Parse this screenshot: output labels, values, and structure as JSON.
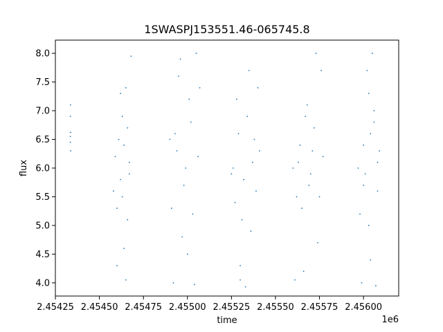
{
  "chart_data": {
    "type": "scatter",
    "title": "1SWASPJ153551.46-065745.8",
    "xlabel": "time",
    "ylabel": "flux",
    "x_offset_label": "1e6",
    "xlim": [
      2.45425,
      2.4562
    ],
    "ylim": [
      3.77,
      8.23
    ],
    "x_ticks": [
      {
        "value": 2.45425,
        "label": "2.45425"
      },
      {
        "value": 2.4545,
        "label": "2.45450"
      },
      {
        "value": 2.45475,
        "label": "2.45475"
      },
      {
        "value": 2.455,
        "label": "2.45500"
      },
      {
        "value": 2.45525,
        "label": "2.45525"
      },
      {
        "value": 2.4555,
        "label": "2.45550"
      },
      {
        "value": 2.45575,
        "label": "2.45575"
      },
      {
        "value": 2.456,
        "label": "2.45600"
      }
    ],
    "y_ticks": [
      {
        "value": 4.0,
        "label": "4.0"
      },
      {
        "value": 4.5,
        "label": "4.5"
      },
      {
        "value": 5.0,
        "label": "5.0"
      },
      {
        "value": 5.5,
        "label": "5.5"
      },
      {
        "value": 6.0,
        "label": "6.0"
      },
      {
        "value": 6.5,
        "label": "6.5"
      },
      {
        "value": 7.0,
        "label": "7.0"
      },
      {
        "value": 7.5,
        "label": "7.5"
      },
      {
        "value": 8.0,
        "label": "8.0"
      }
    ],
    "grid": false,
    "marker_color": "#1f77b4",
    "series": [
      {
        "points": [
          [
            2.454335,
            6.45
          ],
          [
            2.454336,
            6.62
          ],
          [
            2.454335,
            6.9
          ],
          [
            2.454337,
            6.3
          ],
          [
            2.454336,
            7.1
          ],
          [
            2.454335,
            6.55
          ],
          [
            2.45458,
            5.6
          ],
          [
            2.45459,
            6.2
          ],
          [
            2.4546,
            5.3
          ],
          [
            2.45461,
            6.5
          ],
          [
            2.45462,
            5.8
          ],
          [
            2.45463,
            6.9
          ],
          [
            2.45464,
            4.6
          ],
          [
            2.45465,
            7.4
          ],
          [
            2.45466,
            5.1
          ],
          [
            2.45467,
            6.1
          ],
          [
            2.45468,
            7.95
          ],
          [
            2.4546,
            4.3
          ],
          [
            2.45465,
            4.05
          ],
          [
            2.45462,
            7.3
          ],
          [
            2.45466,
            6.7
          ],
          [
            2.45463,
            5.5
          ],
          [
            2.45467,
            5.9
          ],
          [
            2.45464,
            6.4
          ],
          [
            2.45491,
            5.3
          ],
          [
            2.45493,
            6.6
          ],
          [
            2.45495,
            7.6
          ],
          [
            2.45497,
            4.8
          ],
          [
            2.45499,
            6.0
          ],
          [
            2.45501,
            7.2
          ],
          [
            2.45503,
            5.2
          ],
          [
            2.45505,
            8.0
          ],
          [
            2.45492,
            4.0
          ],
          [
            2.45496,
            7.9
          ],
          [
            2.45504,
            3.97
          ],
          [
            2.455,
            4.5
          ],
          [
            2.45494,
            6.3
          ],
          [
            2.45498,
            5.7
          ],
          [
            2.45502,
            6.8
          ],
          [
            2.45506,
            6.2
          ],
          [
            2.4549,
            6.5
          ],
          [
            2.45507,
            7.4
          ],
          [
            2.45526,
            6.0
          ],
          [
            2.45528,
            7.2
          ],
          [
            2.4553,
            4.3
          ],
          [
            2.45532,
            5.8
          ],
          [
            2.45534,
            6.9
          ],
          [
            2.45536,
            4.9
          ],
          [
            2.45538,
            6.5
          ],
          [
            2.4554,
            7.4
          ],
          [
            2.45527,
            5.4
          ],
          [
            2.45533,
            3.93
          ],
          [
            2.45535,
            7.7
          ],
          [
            2.45529,
            6.6
          ],
          [
            2.45531,
            5.1
          ],
          [
            2.45537,
            6.1
          ],
          [
            2.45539,
            5.6
          ],
          [
            2.45541,
            6.3
          ],
          [
            2.45525,
            5.9
          ],
          [
            2.4553,
            4.05
          ],
          [
            2.45562,
            5.5
          ],
          [
            2.45564,
            6.4
          ],
          [
            2.45566,
            4.2
          ],
          [
            2.45568,
            7.1
          ],
          [
            2.4557,
            5.9
          ],
          [
            2.45572,
            6.7
          ],
          [
            2.45574,
            4.7
          ],
          [
            2.45576,
            7.7
          ],
          [
            2.45561,
            4.05
          ],
          [
            2.45573,
            8.0
          ],
          [
            2.45563,
            6.1
          ],
          [
            2.45565,
            5.3
          ],
          [
            2.45567,
            6.9
          ],
          [
            2.45569,
            5.7
          ],
          [
            2.45571,
            6.3
          ],
          [
            2.45575,
            5.5
          ],
          [
            2.45577,
            6.2
          ],
          [
            2.4556,
            6.0
          ],
          [
            2.45598,
            5.2
          ],
          [
            2.456,
            6.4
          ],
          [
            2.45602,
            7.7
          ],
          [
            2.45604,
            4.4
          ],
          [
            2.45606,
            6.8
          ],
          [
            2.45608,
            5.6
          ],
          [
            2.45599,
            4.0
          ],
          [
            2.45605,
            8.0
          ],
          [
            2.45607,
            3.95
          ],
          [
            2.45603,
            7.3
          ],
          [
            2.45601,
            5.9
          ],
          [
            2.45609,
            6.3
          ],
          [
            2.45597,
            6.0
          ],
          [
            2.45603,
            5.0
          ],
          [
            2.45606,
            7.0
          ],
          [
            2.456,
            5.7
          ],
          [
            2.45604,
            6.6
          ],
          [
            2.45608,
            6.1
          ]
        ]
      }
    ]
  }
}
